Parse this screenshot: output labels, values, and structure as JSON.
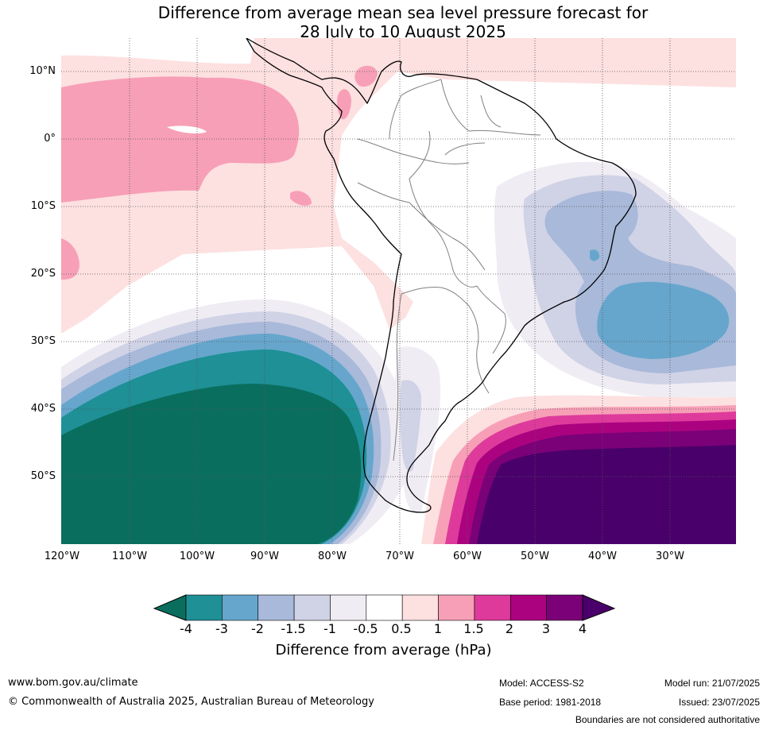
{
  "header": {
    "title_line1": "Difference from average mean sea level pressure forecast for",
    "title_line2": "28 July to 10 August 2025"
  },
  "map": {
    "lat_labels": [
      "10°N",
      "0°",
      "10°S",
      "20°S",
      "30°S",
      "40°S",
      "50°S"
    ],
    "lon_labels": [
      "120°W",
      "110°W",
      "100°W",
      "90°W",
      "80°W",
      "70°W",
      "60°W",
      "50°W",
      "40°W",
      "30°W"
    ],
    "colors": {
      "bin_below_neg4": "#0a6e5e",
      "bin_neg4_neg3": "#1e9096",
      "bin_neg3_neg2": "#66a6cc",
      "bin_neg2_neg1_5": "#a8b9da",
      "bin_neg1_5_neg1": "#d0d2e6",
      "bin_neg1_neg0_5": "#efecf3",
      "bin_neutral": "#ffffff",
      "bin_0_5_1": "#fde0e0",
      "bin_1_1_5": "#f79fb6",
      "bin_1_5_2": "#de3a9b",
      "bin_2_3": "#ab0380",
      "bin_3_4": "#7a0177",
      "bin_above_4": "#4a006a",
      "coastline": "#000000",
      "borders": "#808080",
      "gridlines": "#555555"
    }
  },
  "colorbar": {
    "title": "Difference from average (hPa)",
    "ticks": [
      "-4",
      "-3",
      "-2",
      "-1.5",
      "-1",
      "-0.5",
      "0.5",
      "1",
      "1.5",
      "2",
      "3",
      "4"
    ],
    "fill_colors": [
      "#1e9096",
      "#66a6cc",
      "#a8b9da",
      "#d0d2e6",
      "#efecf3",
      "#ffffff",
      "#fde0e0",
      "#f79fb6",
      "#de3a9b",
      "#ab0380",
      "#7a0177"
    ],
    "low_extend_color": "#0a6e5e",
    "high_extend_color": "#4a006a"
  },
  "footer": {
    "website": "www.bom.gov.au/climate",
    "copyright": "© Commonwealth of Australia 2025, Australian Bureau of Meteorology",
    "model": "Model: ACCESS-S2",
    "base_period": "Base period: 1981-2018",
    "model_run": "Model run: 21/07/2025",
    "issued": "Issued: 23/07/2025",
    "disclaimer": "Boundaries are not considered authoritative"
  }
}
